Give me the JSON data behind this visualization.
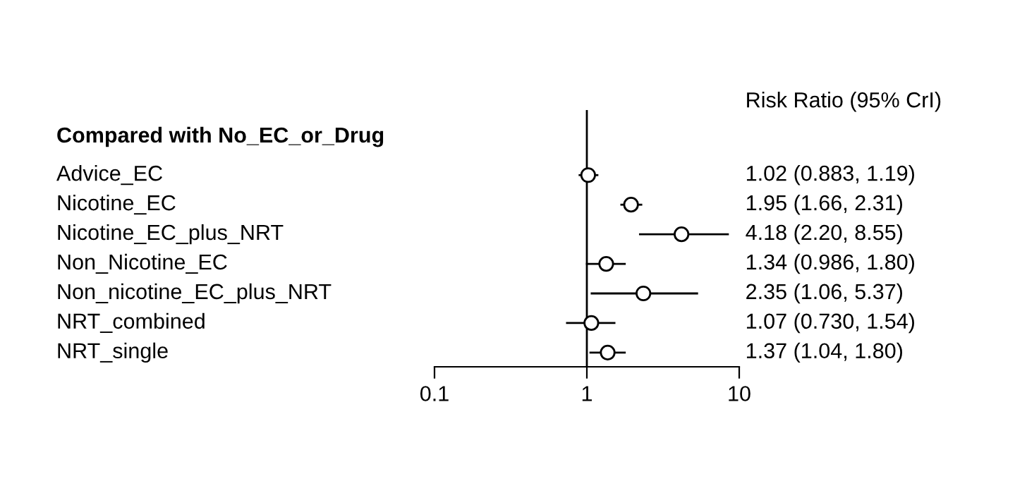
{
  "chart_data": {
    "type": "scatter",
    "orientation": "horizontal",
    "title": "Compared with No_EC_or_Drug",
    "categories": [
      "Advice_EC",
      "Nicotine_EC",
      "Nicotine_EC_plus_NRT",
      "Non_Nicotine_EC",
      "Non_nicotine_EC_plus_NRT",
      "NRT_combined",
      "NRT_single"
    ],
    "values": [
      1.02,
      1.95,
      4.18,
      1.34,
      2.35,
      1.07,
      1.37
    ],
    "errors": [
      [
        0.883,
        1.19
      ],
      [
        1.66,
        2.31
      ],
      [
        2.2,
        8.55
      ],
      [
        0.986,
        1.8
      ],
      [
        1.06,
        5.37
      ],
      [
        0.73,
        1.54
      ],
      [
        1.04,
        1.8
      ]
    ],
    "annotations": [
      "Risk Ratio (95% CrI)",
      "1.02 (0.883, 1.19)",
      "1.95 (1.66, 2.31)",
      "4.18 (2.20, 8.55)",
      "1.34 (0.986, 1.80)",
      "2.35 (1.06, 5.37)",
      "1.07 (0.730, 1.54)",
      "1.37 (1.04, 1.80)"
    ],
    "color": "#000000",
    "marker": "circle",
    "log": "x",
    "xlim": [
      0.1,
      10
    ],
    "xticks": [
      0.1,
      1,
      10
    ],
    "ref_lines": [
      {
        "axis": "x",
        "value": 1,
        "color": "#000000"
      }
    ],
    "grid": false,
    "legend": false
  }
}
